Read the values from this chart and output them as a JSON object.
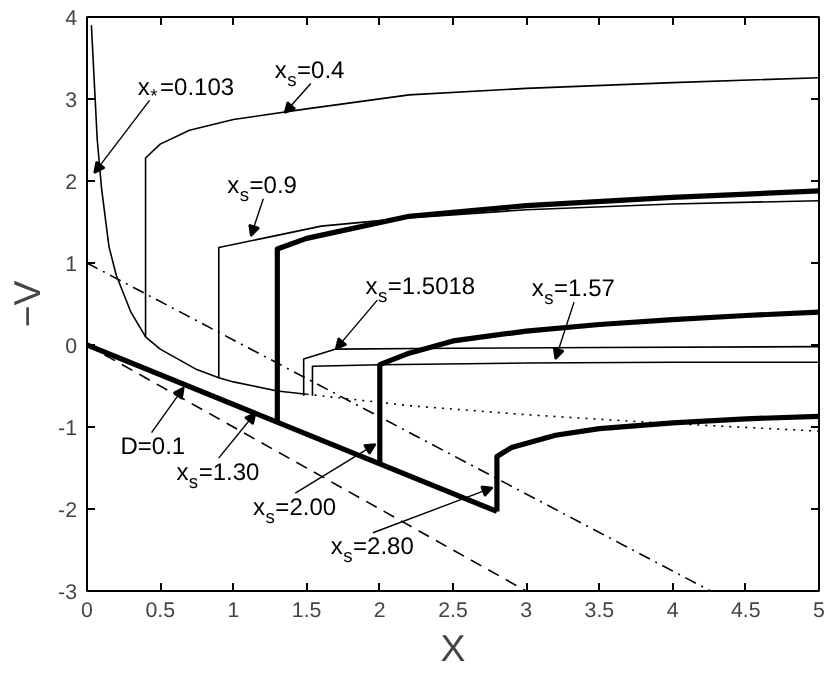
{
  "chart_data": {
    "type": "line",
    "xlabel": "X",
    "ylabel": "−V",
    "xlim": [
      0,
      5
    ],
    "ylim": [
      -3,
      4
    ],
    "xticks": [
      0,
      0.5,
      1,
      1.5,
      2,
      2.5,
      3,
      3.5,
      4,
      4.5,
      5
    ],
    "yticks": [
      -3,
      -2,
      -1,
      0,
      1,
      2,
      3,
      4
    ],
    "grid": false,
    "marker": "none",
    "series": [
      {
        "color": "#000000",
        "line_style": "solid",
        "x": [
          0.03,
          0.05,
          0.07,
          0.1,
          0.15,
          0.2,
          0.3,
          0.4,
          0.5,
          0.75,
          0.9,
          1.0,
          1.3,
          1.5
        ],
        "values": [
          3.9,
          3.2,
          2.5,
          1.9,
          1.2,
          0.85,
          0.4,
          0.1,
          -0.05,
          -0.3,
          -0.4,
          -0.45,
          -0.56,
          -0.6
        ]
      },
      {
        "color": "#000000",
        "line_style": "dotted",
        "x": [
          1.5,
          2.2,
          3,
          4,
          5
        ],
        "values": [
          -0.6,
          -0.74,
          -0.85,
          -0.96,
          -1.05
        ]
      },
      {
        "color": "#000000",
        "line_style": "solid",
        "x": [
          0.4,
          0.4,
          0.5,
          0.7,
          1.0,
          1.5,
          2.2,
          3,
          4,
          5
        ],
        "values": [
          0.1,
          2.28,
          2.45,
          2.62,
          2.75,
          2.88,
          3.05,
          3.13,
          3.2,
          3.26
        ]
      },
      {
        "color": "#000000",
        "line_style": "solid",
        "x": [
          0.9,
          0.9,
          1.2,
          1.6,
          2.2,
          3,
          4,
          5
        ],
        "values": [
          -0.4,
          1.19,
          1.3,
          1.45,
          1.55,
          1.65,
          1.72,
          1.76
        ]
      },
      {
        "color": "#000000",
        "line_style": "solid",
        "x": [
          1.48,
          1.48,
          1.7,
          2.5,
          3.5,
          5
        ],
        "values": [
          -0.62,
          -0.17,
          -0.05,
          -0.04,
          -0.03,
          -0.02
        ]
      },
      {
        "color": "#000000",
        "line_style": "solid",
        "x": [
          1.54,
          1.54,
          2,
          3,
          4,
          5
        ],
        "values": [
          -0.62,
          -0.26,
          -0.24,
          -0.22,
          -0.21,
          -0.21
        ]
      },
      {
        "color": "#000000",
        "line_style": "solid",
        "x": [
          0,
          2.8
        ],
        "values": [
          0,
          -2.03
        ]
      },
      {
        "color": "#000000",
        "line_style": "solid",
        "x": [
          1.3,
          1.3,
          1.5,
          2.2,
          3,
          4,
          5
        ],
        "values": [
          -0.94,
          1.17,
          1.3,
          1.57,
          1.7,
          1.8,
          1.88
        ]
      },
      {
        "color": "#000000",
        "line_style": "solid",
        "x": [
          2,
          2,
          2.2,
          2.5,
          3,
          3.5,
          4,
          4.5,
          5
        ],
        "values": [
          -1.45,
          -0.24,
          -0.1,
          0.05,
          0.17,
          0.25,
          0.31,
          0.36,
          0.4
        ]
      },
      {
        "color": "#000000",
        "line_style": "solid",
        "x": [
          2.8,
          2.8,
          2.9,
          3.2,
          3.5,
          4,
          4.5,
          5
        ],
        "values": [
          -2.03,
          -1.36,
          -1.25,
          -1.1,
          -1.02,
          -0.95,
          -0.9,
          -0.87
        ]
      },
      {
        "color": "#000000",
        "line_style": "dashed",
        "x": [
          0,
          3
        ],
        "values": [
          0,
          -3
        ]
      },
      {
        "color": "#000000",
        "line_style": "dashdot",
        "x": [
          0,
          4.26
        ],
        "values": [
          1,
          -3
        ]
      }
    ],
    "annotations": [
      {
        "text": "x$_{*}$=0.103",
        "x": 0.05,
        "y": 2.1
      },
      {
        "text": "x$_{s}$=0.4",
        "x": 1.35,
        "y": 2.83
      },
      {
        "text": "x$_{s}$=0.9",
        "x": 1.12,
        "y": 1.33
      },
      {
        "text": "x$_{s}$=1.5018",
        "x": 1.7,
        "y": -0.05
      },
      {
        "text": "x$_{s}$=1.57",
        "x": 3.2,
        "y": -0.17
      },
      {
        "text": "D=0.1",
        "x": 0.66,
        "y": -0.52
      },
      {
        "text": "x$_{s}$=1.30",
        "x": 1.15,
        "y": -0.83
      },
      {
        "text": "x$_{s}$=2.00",
        "x": 1.97,
        "y": -1.21
      },
      {
        "text": "x$_{s}$=2.80",
        "x": 2.77,
        "y": -1.74
      }
    ]
  }
}
